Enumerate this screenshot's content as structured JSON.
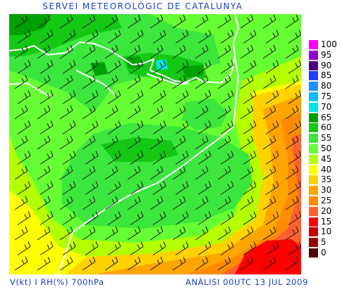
{
  "title": "SERVEI METEOROLÒGIC DE CATALUNYA",
  "footer": {
    "variables": "V(kt) I RH(%) 700hPa",
    "analysis": "ANÀLISI 00UTC 13 JUL 2009"
  },
  "legend": [
    {
      "label": "100",
      "color": "#ff00ff"
    },
    {
      "label": "95",
      "color": "#9400d3"
    },
    {
      "label": "90",
      "color": "#4b0082"
    },
    {
      "label": "85",
      "color": "#1e3cff"
    },
    {
      "label": "80",
      "color": "#1e90ff"
    },
    {
      "label": "75",
      "color": "#00bfff"
    },
    {
      "label": "70",
      "color": "#00e6e6"
    },
    {
      "label": "65",
      "color": "#00a000"
    },
    {
      "label": "60",
      "color": "#14c814"
    },
    {
      "label": "55",
      "color": "#3ce63c"
    },
    {
      "label": "50",
      "color": "#66ff33"
    },
    {
      "label": "45",
      "color": "#b4ff00"
    },
    {
      "label": "40",
      "color": "#ffff00"
    },
    {
      "label": "35",
      "color": "#ffd200"
    },
    {
      "label": "30",
      "color": "#ffa500"
    },
    {
      "label": "25",
      "color": "#ff8c00"
    },
    {
      "label": "20",
      "color": "#ff6030"
    },
    {
      "label": "15",
      "color": "#ff0000"
    },
    {
      "label": "10",
      "color": "#c80000"
    },
    {
      "label": "5",
      "color": "#960000"
    },
    {
      "label": "0",
      "color": "#500000"
    }
  ]
}
